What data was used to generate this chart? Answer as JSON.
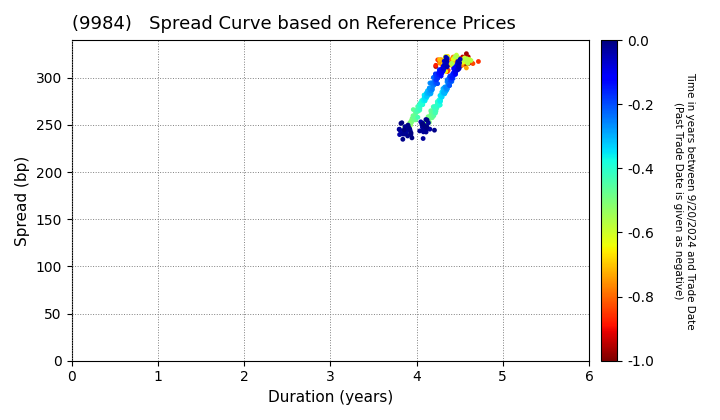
{
  "title": "(9984)   Spread Curve based on Reference Prices",
  "xlabel": "Duration (years)",
  "ylabel": "Spread (bp)",
  "xlim": [
    0,
    6
  ],
  "ylim": [
    0,
    340
  ],
  "xticks": [
    0,
    1,
    2,
    3,
    4,
    5,
    6
  ],
  "yticks": [
    0,
    50,
    100,
    150,
    200,
    250,
    300
  ],
  "cmap": "jet",
  "clim": [
    -1.0,
    0.0
  ],
  "cticks": [
    0.0,
    -0.2,
    -0.4,
    -0.6,
    -0.8,
    -1.0
  ],
  "point_size": 12,
  "colorbar_label": "Time in years between 9/20/2024 and Trade Date\n(Past Trade Date is given as negative)"
}
